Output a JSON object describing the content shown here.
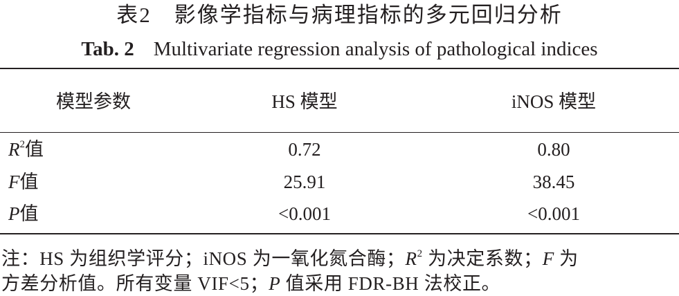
{
  "title_cn": "表2　影像学指标与病理指标的多元回归分析",
  "title_en": {
    "label": "Tab. 2",
    "text": "Multivariate regression analysis of pathological indices"
  },
  "table": {
    "header": [
      "模型参数",
      "HS 模型",
      "iNOS 模型"
    ],
    "rows": [
      {
        "symbol": "R",
        "sup": "2",
        "suffix": "值",
        "cells": [
          "0.72",
          "0.80"
        ]
      },
      {
        "symbol": "F",
        "suffix": "值",
        "cells": [
          "25.91",
          "38.45"
        ]
      },
      {
        "symbol": "P",
        "suffix": "值",
        "cells": [
          "<0.001",
          "<0.001"
        ]
      }
    ]
  },
  "note": [
    "注：HS 为组织学评分；iNOS 为一氧化氮合酶；",
    "R",
    "2",
    " 为决定系数；",
    "F",
    " 为",
    "方差分析值。所有变量 VIF<5；",
    "P",
    " 值采用 FDR-BH 法校正。"
  ]
}
